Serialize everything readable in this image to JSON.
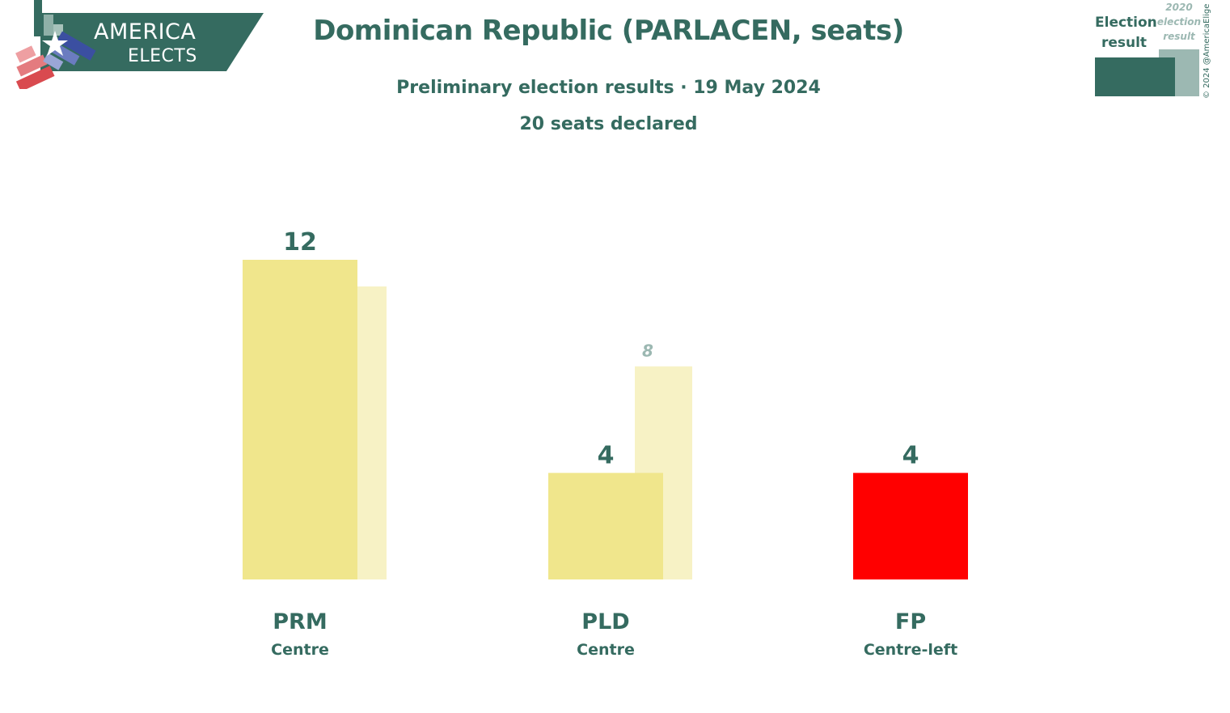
{
  "brand": {
    "line1": "AMERICA",
    "line2": "ELECTS"
  },
  "title": "Dominican Republic (PARLACEN, seats)",
  "subtitle": "Preliminary election results · 19 May 2024",
  "subtitle2": "20 seats declared",
  "legend": {
    "current": "Election result",
    "previous": "2020 election result"
  },
  "copyright": "© 2024 @AmericaElige",
  "colors": {
    "primary": "#356b60",
    "muted": "#9cb8b2"
  },
  "chart_data": {
    "type": "bar",
    "categories": [
      "PRM",
      "PLD",
      "FP"
    ],
    "sublabels": [
      "Centre",
      "Centre",
      "Centre-left"
    ],
    "series": [
      {
        "name": "Election result",
        "values": [
          12,
          4,
          4
        ]
      },
      {
        "name": "2020 election result",
        "values": [
          11,
          8,
          null
        ]
      }
    ],
    "colors": [
      "#f0e68c",
      "#f0e68c",
      "#ff0000"
    ],
    "prev_colors": [
      "#f7f2c5",
      "#f7f2c5",
      null
    ],
    "ylim": [
      0,
      12
    ]
  }
}
